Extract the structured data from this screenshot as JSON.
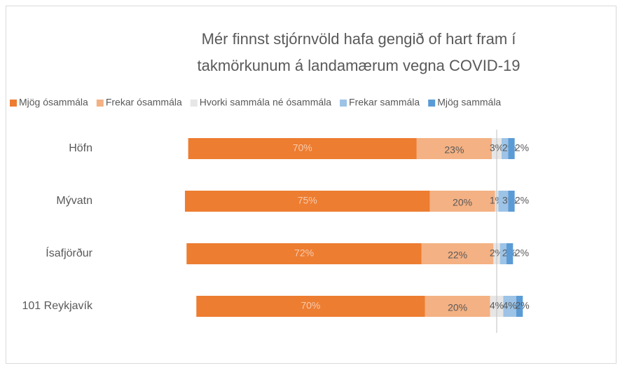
{
  "chart_data": {
    "type": "diverging_bar",
    "title": [
      "Mér finnst stjórnvöld hafa gengið of hart fram í",
      "takmörkunum á landamærum vegna COVID-19"
    ],
    "categories": [
      "Höfn",
      "Mývatn",
      "Ísafjörður",
      "101 Reykjavík"
    ],
    "neutral_series": 2,
    "series": [
      {
        "name": "Mjög ósammála",
        "color": "#ed7d31",
        "label_color": "#f8cbad",
        "values": [
          70,
          75,
          72,
          70
        ],
        "value_labels": [
          "70%",
          "75%",
          "72%",
          "70%"
        ]
      },
      {
        "name": "Frekar ósammála",
        "color": "#f4b183",
        "label_color": "#595959",
        "values": [
          23,
          20,
          22,
          20
        ],
        "value_labels": [
          "23%",
          "20%",
          "22%",
          "20%"
        ]
      },
      {
        "name": "Hvorki sammála né ósammála",
        "color": "#e7e6e6",
        "label_color": "#595959",
        "values": [
          3,
          1,
          2,
          4
        ],
        "value_labels": [
          "3%",
          "1%",
          "2%",
          "4%"
        ]
      },
      {
        "name": "Frekar sammála",
        "color": "#9dc3e6",
        "label_color": "#595959",
        "values": [
          2,
          3,
          2,
          4
        ],
        "value_labels": [
          "2%",
          "3%",
          "2%",
          "4%"
        ]
      },
      {
        "name": "Mjög sammála",
        "color": "#5b9bd5",
        "label_color": "#595959",
        "values": [
          2,
          2,
          2,
          2
        ],
        "value_labels": [
          "2%",
          "2%",
          "2%",
          "2%"
        ]
      }
    ],
    "legend": "top"
  }
}
